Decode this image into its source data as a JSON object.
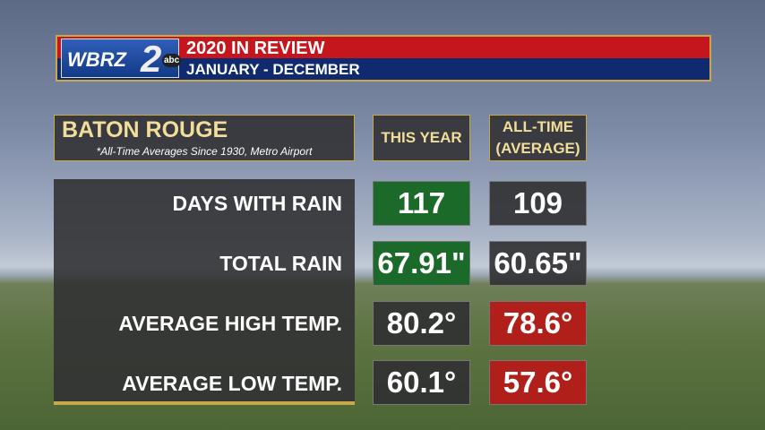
{
  "header": {
    "logo": {
      "letters": "WBRZ",
      "number": "2",
      "network": "abc"
    },
    "title": "2020 IN REVIEW",
    "subtitle": "JANUARY - DECEMBER"
  },
  "table": {
    "title": "BATON ROUGE",
    "note": "*All-Time Averages Since 1930, Metro Airport",
    "columns": [
      "THIS YEAR",
      "ALL-TIME (AVERAGE)"
    ],
    "rows": [
      [
        "DAYS WITH RAIN",
        "117",
        "109"
      ],
      [
        "TOTAL RAIN",
        "67.91\"",
        "60.65\""
      ],
      [
        "AVERAGE HIGH TEMP.",
        "80.2°",
        "78.6°"
      ],
      [
        "AVERAGE LOW TEMP.",
        "60.1°",
        "57.6°"
      ]
    ]
  }
}
